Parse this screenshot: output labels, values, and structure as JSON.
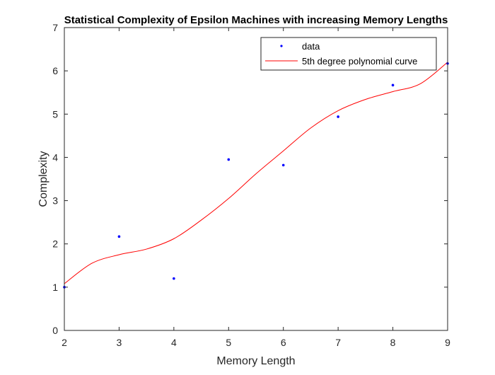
{
  "chart_data": {
    "type": "scatter",
    "title": "Statistical Complexity of Epsilon Machines with increasing Memory Lengths",
    "xlabel": "Memory Length",
    "ylabel": "Complexity",
    "xlim": [
      2,
      9
    ],
    "ylim": [
      0,
      7
    ],
    "xticks": [
      "2",
      "3",
      "4",
      "5",
      "6",
      "7",
      "8",
      "9"
    ],
    "yticks": [
      "0",
      "1",
      "2",
      "3",
      "4",
      "5",
      "6",
      "7"
    ],
    "grid": false,
    "legend_position": "top-right",
    "series": [
      {
        "name": "data",
        "kind": "points",
        "color": "#0000ff",
        "x": [
          2,
          3,
          4,
          5,
          6,
          7,
          8,
          9
        ],
        "y": [
          1.0,
          2.17,
          1.2,
          3.95,
          3.82,
          4.94,
          5.67,
          6.17
        ]
      },
      {
        "name": "5th degree polynomial curve",
        "kind": "line",
        "color": "#ff0000",
        "x": [
          2,
          2.5,
          3,
          3.5,
          4,
          4.5,
          5,
          5.5,
          6,
          6.5,
          7,
          7.5,
          8,
          8.5,
          9
        ],
        "y": [
          1.08,
          1.55,
          1.75,
          1.88,
          2.12,
          2.55,
          3.05,
          3.62,
          4.15,
          4.68,
          5.08,
          5.34,
          5.52,
          5.7,
          6.2
        ]
      }
    ]
  }
}
